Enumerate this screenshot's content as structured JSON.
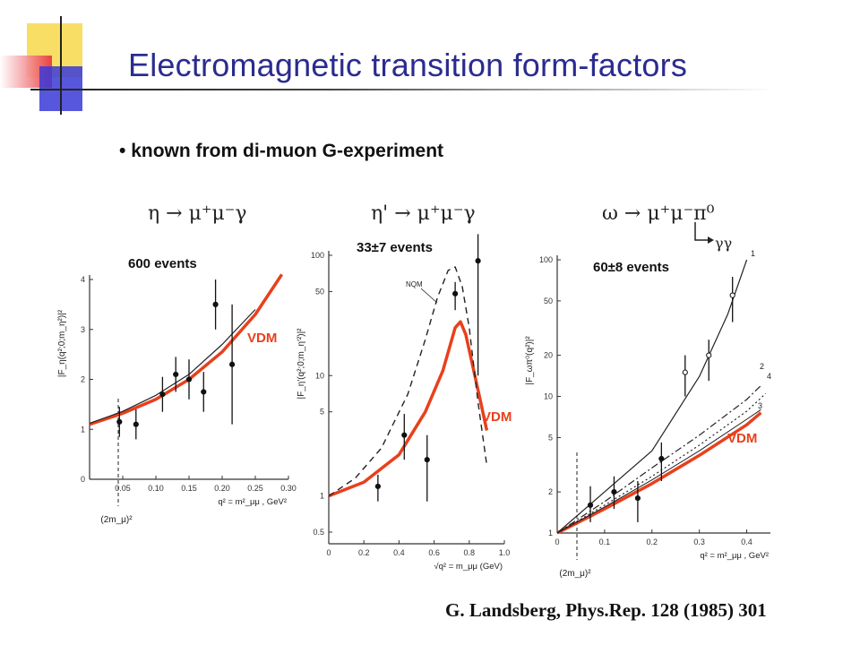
{
  "slide": {
    "title": "Electromagnetic transition form-factors",
    "bullet": "known from di-muon G-experiment",
    "citation": "G. Landsberg, Phys.Rep. 128 (1985) 301",
    "colors": {
      "title": "#2b2b8f",
      "vdm": "#e8401c",
      "deco_yellow": "#f7d84a",
      "deco_red": "#e8303a",
      "deco_blue": "#3a3ad8"
    }
  },
  "chart_data": [
    {
      "type": "scatter",
      "reaction": "η → μ⁺μ⁻γ",
      "events": "600 events",
      "ylabel": "|F_η(q²;0;m_η²)|²",
      "xlabel": "q² = m²_μμ , GeV²",
      "threshold_label": "(2m_μ)²",
      "xlim": [
        0,
        0.3
      ],
      "ylim": [
        0,
        4
      ],
      "x_ticks": [
        "0.05",
        "0.10",
        "0.15",
        "0.20",
        "0.25",
        "0.30"
      ],
      "y_ticks": [
        "0",
        "1",
        "2",
        "3",
        "4"
      ],
      "points": [
        {
          "x": 0.045,
          "y": 1.15,
          "err": 0.3
        },
        {
          "x": 0.07,
          "y": 1.1,
          "err": 0.3
        },
        {
          "x": 0.11,
          "y": 1.7,
          "err": 0.35
        },
        {
          "x": 0.13,
          "y": 2.1,
          "err": 0.35
        },
        {
          "x": 0.15,
          "y": 2.0,
          "err": 0.4
        },
        {
          "x": 0.172,
          "y": 1.75,
          "err": 0.4
        },
        {
          "x": 0.19,
          "y": 3.5,
          "err": 0.5
        },
        {
          "x": 0.215,
          "y": 2.3,
          "err": 1.2
        }
      ],
      "series": [
        {
          "name": "VDM",
          "style": "red-thick",
          "x": [
            0.0,
            0.05,
            0.1,
            0.15,
            0.2,
            0.25,
            0.29
          ],
          "y": [
            1.1,
            1.32,
            1.6,
            2.0,
            2.55,
            3.3,
            4.1
          ]
        },
        {
          "name": "",
          "style": "black-thin",
          "x": [
            0.0,
            0.05,
            0.1,
            0.15,
            0.2,
            0.25
          ],
          "y": [
            1.12,
            1.36,
            1.68,
            2.1,
            2.7,
            3.4
          ]
        }
      ]
    },
    {
      "type": "scatter",
      "reaction": "η' → μ⁺μ⁻γ",
      "events": "33±7 events",
      "ylabel": "|F_η'(q²;0;m_η'²)|²",
      "xlabel": "√q² = m_μμ (GeV)",
      "yscale": "log",
      "xlim": [
        0,
        1.0
      ],
      "ylim": [
        0.4,
        100
      ],
      "x_ticks": [
        "0",
        "0.2",
        "0.4",
        "0.6",
        "0.8",
        "1.0"
      ],
      "y_ticks": [
        "100",
        "50",
        "10",
        "5",
        "1",
        "0.5"
      ],
      "points": [
        {
          "x": 0.28,
          "y": 1.2,
          "lo": 0.9,
          "hi": 1.5
        },
        {
          "x": 0.43,
          "y": 3.2,
          "lo": 2.0,
          "hi": 4.8
        },
        {
          "x": 0.56,
          "y": 2.0,
          "lo": 0.9,
          "hi": 3.2
        },
        {
          "x": 0.72,
          "y": 48,
          "lo": 35,
          "hi": 60
        },
        {
          "x": 0.85,
          "y": 90,
          "lo": 10,
          "hi": 150
        }
      ],
      "annotation": "NQM",
      "series": [
        {
          "name": "VDM",
          "style": "red-thick",
          "x": [
            0.0,
            0.2,
            0.4,
            0.55,
            0.65,
            0.72,
            0.75,
            0.78,
            0.82,
            0.86,
            0.9
          ],
          "y": [
            1.0,
            1.3,
            2.2,
            5,
            11,
            25,
            28,
            22,
            12,
            6.5,
            3.5
          ]
        },
        {
          "name": "NQM",
          "style": "black-dashed",
          "x": [
            0.0,
            0.15,
            0.3,
            0.45,
            0.55,
            0.62,
            0.68,
            0.72,
            0.76,
            0.8,
            0.85,
            0.9
          ],
          "y": [
            1.0,
            1.4,
            2.5,
            7,
            20,
            45,
            75,
            80,
            55,
            25,
            6,
            1.8
          ]
        }
      ]
    },
    {
      "type": "scatter",
      "reaction": "ω → μ⁺μ⁻π⁰",
      "reaction_sub": "γγ",
      "events": "60±8 events",
      "ylabel": "|F_ωπ⁰(q²)|²",
      "xlabel": "q² = m²_μμ , GeV²",
      "threshold_label": "(2m_μ)²",
      "yscale": "log",
      "xlim": [
        0,
        0.45
      ],
      "ylim": [
        1,
        100
      ],
      "x_ticks": [
        "0",
        "0.1",
        "0.2",
        "0.3",
        "0.4"
      ],
      "y_ticks": [
        "100",
        "50",
        "20",
        "10",
        "5",
        "2",
        "1"
      ],
      "points": [
        {
          "x": 0.07,
          "y": 1.6,
          "lo": 1.2,
          "hi": 2.2
        },
        {
          "x": 0.12,
          "y": 2.0,
          "lo": 1.5,
          "hi": 2.6
        },
        {
          "x": 0.17,
          "y": 1.8,
          "lo": 1.2,
          "hi": 2.4
        },
        {
          "x": 0.22,
          "y": 3.5,
          "lo": 2.4,
          "hi": 4.6
        },
        {
          "x": 0.27,
          "y": 15,
          "lo": 10,
          "hi": 20
        },
        {
          "x": 0.32,
          "y": 20,
          "lo": 13,
          "hi": 26
        },
        {
          "x": 0.37,
          "y": 55,
          "lo": 35,
          "hi": 75
        }
      ],
      "curve_labels": [
        "1",
        "2",
        "3",
        "4"
      ],
      "series": [
        {
          "name": "VDM",
          "style": "red-thick",
          "x": [
            0.0,
            0.1,
            0.2,
            0.3,
            0.4,
            0.43
          ],
          "y": [
            1.0,
            1.5,
            2.3,
            3.7,
            6.2,
            7.6
          ]
        },
        {
          "name": "1",
          "style": "black-solid",
          "x": [
            0.0,
            0.1,
            0.2,
            0.3,
            0.36,
            0.4
          ],
          "y": [
            1.0,
            2.0,
            4.0,
            14,
            40,
            100
          ]
        },
        {
          "name": "2",
          "style": "black-dashdot",
          "x": [
            0.0,
            0.1,
            0.2,
            0.3,
            0.4,
            0.43
          ],
          "y": [
            1.0,
            1.7,
            3.0,
            5.2,
            9.5,
            12
          ]
        },
        {
          "name": "3",
          "style": "black-solid-thin",
          "x": [
            0.0,
            0.1,
            0.2,
            0.3,
            0.4,
            0.43
          ],
          "y": [
            1.0,
            1.55,
            2.45,
            4.0,
            6.8,
            8.0
          ]
        },
        {
          "name": "4",
          "style": "black-dotted",
          "x": [
            0.0,
            0.1,
            0.2,
            0.3,
            0.4,
            0.44
          ],
          "y": [
            1.0,
            1.6,
            2.6,
            4.4,
            7.8,
            10.5
          ]
        }
      ]
    }
  ]
}
